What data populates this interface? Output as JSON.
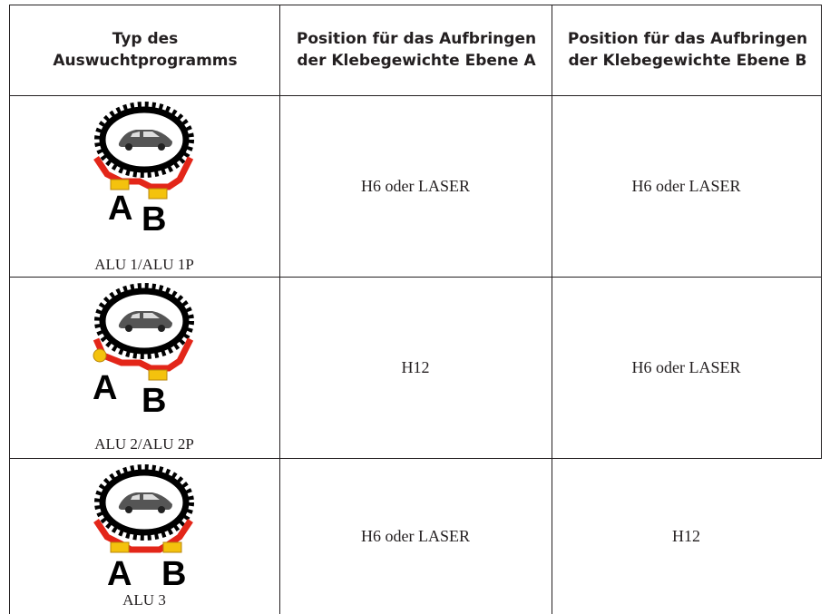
{
  "header": {
    "program_type": "Typ des Auswuchtprogramms",
    "plane_a": "Position für das Aufbringen der Klebegewichte Ebene A",
    "plane_b": "Position für das Aufbringen der Klebegewichte Ebene B"
  },
  "table": {
    "rows": [
      {
        "icon": {
          "a": "A",
          "b": "B"
        },
        "program": "ALU 1/ALU 1P",
        "plane_a": "H6 oder LASER",
        "plane_b": "H6 oder LASER"
      },
      {
        "icon": {
          "a": "A",
          "b": "B"
        },
        "program": "ALU 2/ALU 2P",
        "plane_a": "H12",
        "plane_b": "H6 oder LASER"
      },
      {
        "icon": {
          "a": "A",
          "b": "B"
        },
        "program": "ALU 3",
        "plane_a": "H6 oder LASER",
        "plane_b": "H12"
      }
    ]
  }
}
